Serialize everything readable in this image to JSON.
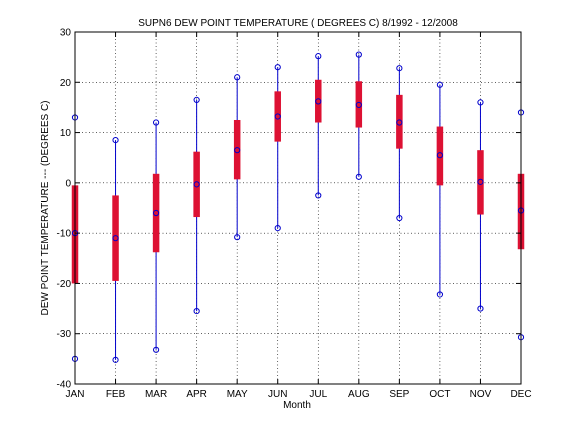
{
  "chart_data": {
    "type": "box",
    "title": "SUPN6  DEW POINT TEMPERATURE ( DEGREES C) 8/1992 - 12/2008",
    "xlabel": "Month",
    "ylabel": "DEW POINT TEMPERATURE --- (DEGREES C)",
    "ylim": [
      -40,
      30
    ],
    "yticks": [
      -40,
      -30,
      -20,
      -10,
      0,
      10,
      20,
      30
    ],
    "grid": true,
    "categories": [
      "JAN",
      "FEB",
      "MAR",
      "APR",
      "MAY",
      "JUN",
      "JUL",
      "AUG",
      "SEP",
      "OCT",
      "NOV",
      "DEC"
    ],
    "max": [
      13,
      8.5,
      12,
      16.5,
      21,
      23,
      25.2,
      25.5,
      22.8,
      19.5,
      16,
      14
    ],
    "q3": [
      -0.5,
      -2.5,
      1.8,
      6.2,
      12.5,
      18.2,
      20.5,
      20.2,
      17.5,
      11.2,
      6.5,
      1.8
    ],
    "median": [
      -10,
      -11,
      -6,
      -0.3,
      6.5,
      13.2,
      16.2,
      15.5,
      12,
      5.5,
      0.2,
      -5.5
    ],
    "q1": [
      -20,
      -19.5,
      -13.8,
      -6.8,
      0.7,
      8.2,
      12,
      11,
      6.8,
      -0.5,
      -6.3,
      -13.2
    ],
    "min": [
      -35,
      -35.2,
      -33.2,
      -25.5,
      -10.8,
      -9,
      -2.5,
      1.2,
      -7,
      -22.2,
      -25,
      -30.7
    ]
  },
  "colors": {
    "whisker": "#0000cc",
    "box": "#dd1133",
    "marker": "#0000cc",
    "grid": "#000000",
    "axis": "#000000"
  }
}
